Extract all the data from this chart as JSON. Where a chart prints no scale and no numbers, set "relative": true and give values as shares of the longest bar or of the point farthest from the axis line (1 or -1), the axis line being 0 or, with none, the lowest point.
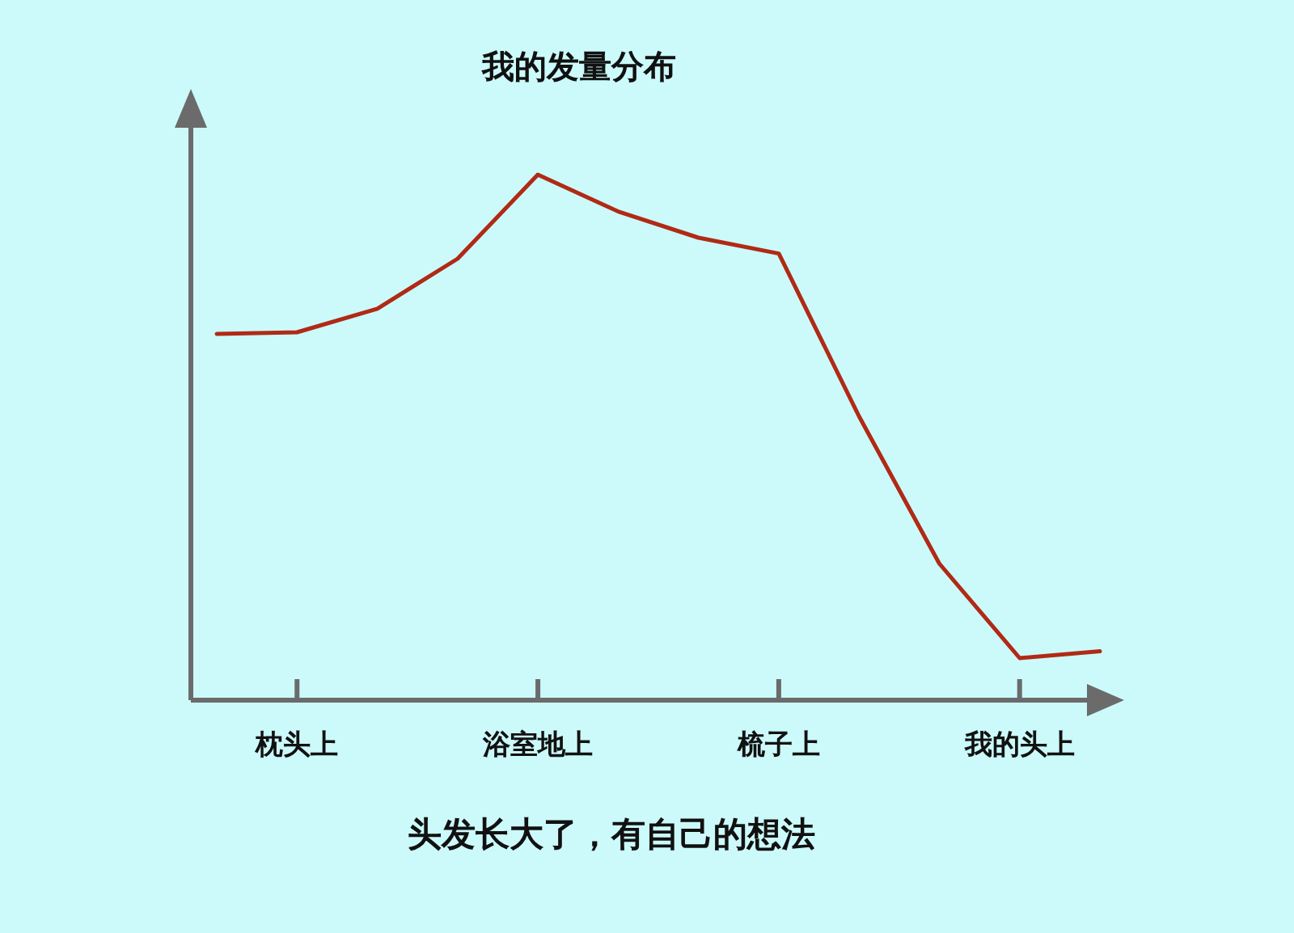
{
  "chart_data": {
    "type": "line",
    "title": "我的发量分布",
    "annotations": [
      "头发长大了，有自己的想法"
    ],
    "relative": true,
    "categories": [
      null,
      "枕头上",
      null,
      null,
      "浴室地上",
      null,
      null,
      "梳子上",
      null,
      null,
      "我的头上",
      null
    ],
    "series": [
      {
        "color": "#b02a16",
        "values": [
          0.697,
          0.7,
          0.745,
          0.84,
          1,
          0.93,
          0.88,
          0.85,
          0.54,
          0.26,
          0.08,
          0.093
        ]
      }
    ]
  }
}
